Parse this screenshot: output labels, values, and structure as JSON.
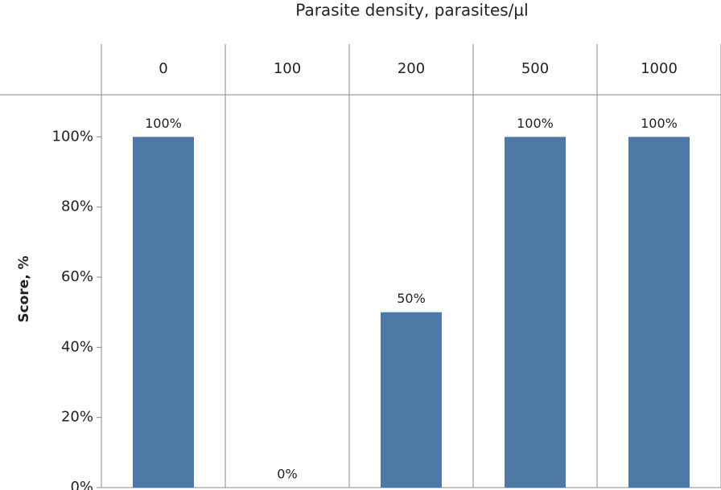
{
  "chart_data": {
    "type": "bar",
    "title": "Parasite density, parasites/µl",
    "y_label": "Score, %",
    "categories": [
      "0",
      "100",
      "200",
      "500",
      "1000"
    ],
    "values": [
      100,
      0,
      50,
      100,
      100
    ],
    "value_labels": [
      "100%",
      "0%",
      "50%",
      "100%",
      "100%"
    ],
    "color": "#4e79a7",
    "ylim": [
      0,
      112
    ],
    "yticks": [
      {
        "value": 0,
        "label": "0%"
      },
      {
        "value": 20,
        "label": "20%"
      },
      {
        "value": 40,
        "label": "40%"
      },
      {
        "value": 60,
        "label": "60%"
      },
      {
        "value": 80,
        "label": "80%"
      },
      {
        "value": 100,
        "label": "100%"
      }
    ],
    "grid": false
  }
}
